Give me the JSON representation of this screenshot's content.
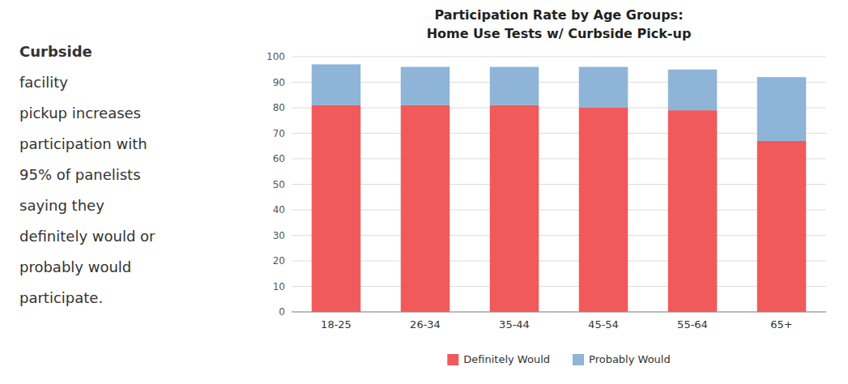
{
  "chart_data": {
    "type": "bar",
    "stacked": true,
    "title": "Participation Rate by Age Groups:",
    "subtitle": "Home Use Tests w/ Curbside Pick-up",
    "categories": [
      "18-25",
      "26-34",
      "35-44",
      "45-54",
      "55-64",
      "65+"
    ],
    "series": [
      {
        "name": "Definitely Would",
        "color": "#f05a5b",
        "values": [
          81,
          81,
          81,
          80,
          79,
          67
        ]
      },
      {
        "name": "Probably Would",
        "color": "#8eb4d8",
        "values": [
          16,
          15,
          15,
          16,
          16,
          25
        ]
      }
    ],
    "ylim": [
      0,
      100
    ],
    "yticks": [
      0,
      10,
      20,
      30,
      40,
      50,
      60,
      70,
      80,
      90,
      100
    ],
    "grid": true,
    "legend": "bottom",
    "annotations": [
      "Curbside",
      "facility",
      "pickup increases",
      "participation with",
      "95% of panelists",
      "saying they",
      "definitely would or",
      "probably would",
      "participate."
    ]
  }
}
